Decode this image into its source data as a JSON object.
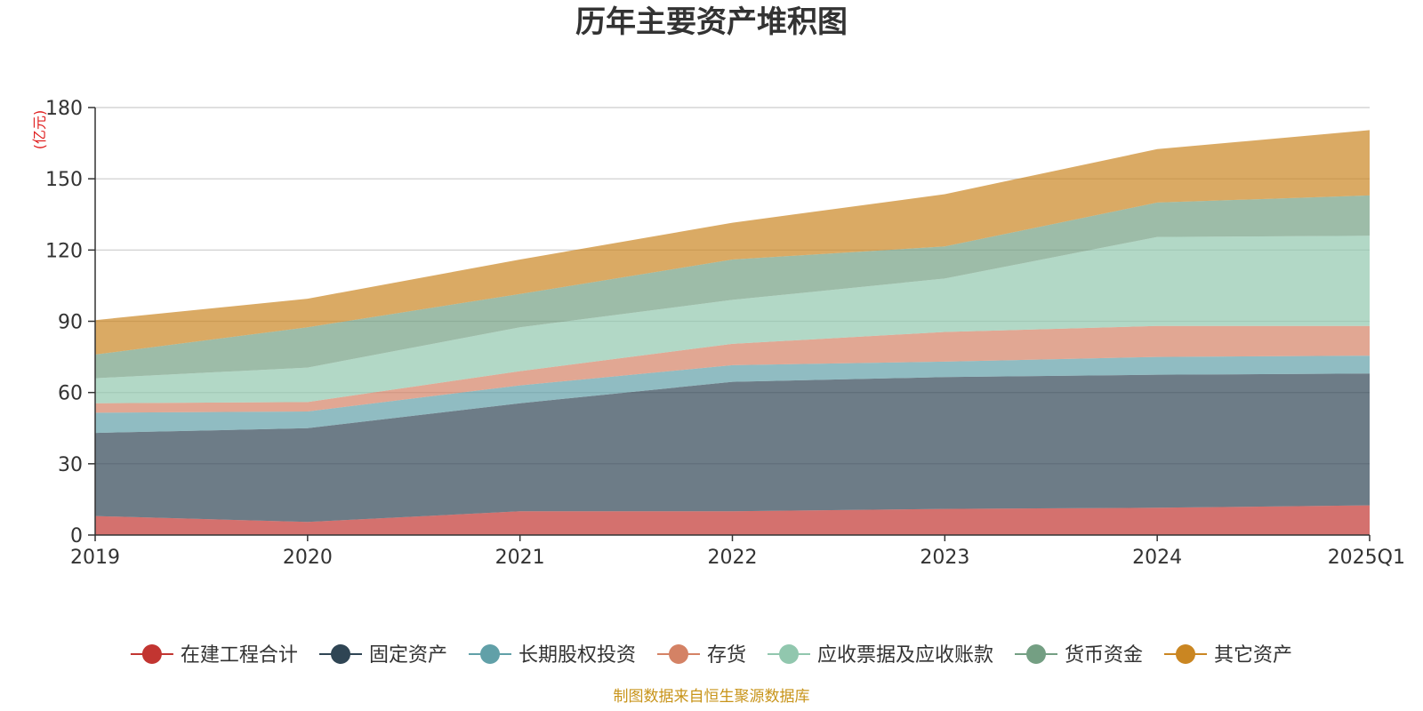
{
  "chart_data": {
    "type": "area",
    "stacked": true,
    "title": "历年主要资产堆积图",
    "unit_label": "(亿元)",
    "categories": [
      "2019",
      "2020",
      "2021",
      "2022",
      "2023",
      "2024",
      "2025Q1"
    ],
    "ylim": [
      0,
      180
    ],
    "yticks": [
      0,
      30,
      60,
      90,
      120,
      150,
      180
    ],
    "grid": true,
    "legend_position": "bottom",
    "series": [
      {
        "name": "在建工程合计",
        "color": "#c23531",
        "values": [
          8,
          5.5,
          10,
          10,
          11,
          11.5,
          12.5
        ]
      },
      {
        "name": "固定资产",
        "color": "#2f4554",
        "values": [
          35,
          39.5,
          45.5,
          54.5,
          55.5,
          56,
          55.5
        ]
      },
      {
        "name": "长期股权投资",
        "color": "#61a0a8",
        "values": [
          8.5,
          7,
          7.5,
          7,
          6.5,
          7.5,
          7.5
        ]
      },
      {
        "name": "存货",
        "color": "#d48265",
        "values": [
          4,
          4,
          6,
          9,
          12.5,
          13,
          12.5
        ]
      },
      {
        "name": "应收票据及应收账款",
        "color": "#91c7ae",
        "values": [
          10.5,
          14.5,
          18.5,
          18.5,
          22.5,
          37.5,
          38
        ]
      },
      {
        "name": "货币资金",
        "color": "#749f83",
        "values": [
          10,
          17,
          14,
          17,
          13.5,
          14.5,
          17
        ]
      },
      {
        "name": "其它资产",
        "color": "#ca8622",
        "values": [
          14.5,
          12,
          14.5,
          15.5,
          22,
          22.5,
          27.5
        ]
      }
    ],
    "source_note": "制图数据来自恒生聚源数据库"
  }
}
